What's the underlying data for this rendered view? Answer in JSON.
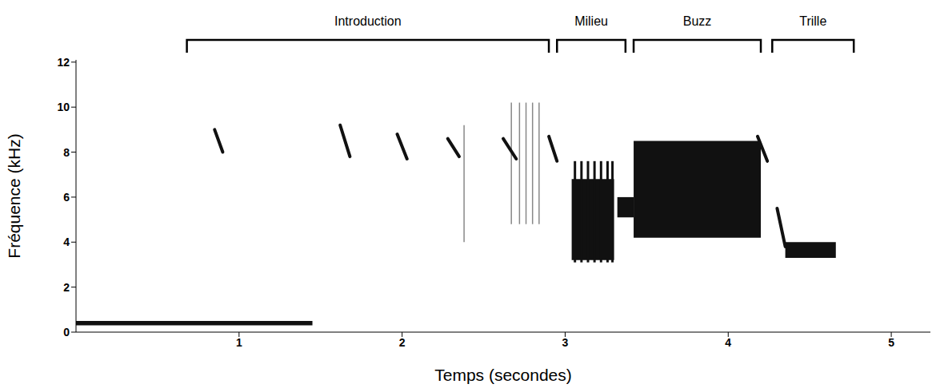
{
  "chart_data": {
    "type": "spectrogram",
    "x_label": "Temps (secondes)",
    "y_label": "Fréquence (kHz)",
    "xlim": [
      0,
      5.24
    ],
    "ylim": [
      0,
      12.1
    ],
    "xticks": [
      1,
      2,
      3,
      4,
      5
    ],
    "yticks": [
      0,
      2,
      4,
      6,
      8,
      10,
      12
    ],
    "sections": [
      {
        "name": "Introduction",
        "start": 0.68,
        "end": 2.9
      },
      {
        "name": "Milieu",
        "start": 2.95,
        "end": 3.37
      },
      {
        "name": "Buzz",
        "start": 3.42,
        "end": 4.2
      },
      {
        "name": "Trille",
        "start": 4.27,
        "end": 4.77
      }
    ],
    "sweeps": [
      {
        "t0": 0.85,
        "f0": 9.0,
        "t1": 0.9,
        "f1": 8.0
      },
      {
        "t0": 1.62,
        "f0": 9.2,
        "t1": 1.68,
        "f1": 7.8
      },
      {
        "t0": 1.97,
        "f0": 8.8,
        "t1": 2.03,
        "f1": 7.7
      },
      {
        "t0": 2.28,
        "f0": 8.6,
        "t1": 2.35,
        "f1": 7.8
      },
      {
        "t0": 2.62,
        "f0": 8.6,
        "t1": 2.7,
        "f1": 7.7
      },
      {
        "t0": 2.9,
        "f0": 8.7,
        "t1": 2.95,
        "f1": 7.6
      },
      {
        "t0": 4.18,
        "f0": 8.7,
        "t1": 4.24,
        "f1": 7.6
      },
      {
        "t0": 4.3,
        "f0": 5.5,
        "t1": 4.35,
        "f1": 3.8
      }
    ],
    "clicks": [
      {
        "t": 2.38,
        "f0": 4.0,
        "f1": 9.2
      },
      {
        "t": 2.67,
        "f0": 4.8,
        "f1": 10.2
      },
      {
        "t": 2.72,
        "f0": 4.8,
        "f1": 10.2
      },
      {
        "t": 2.76,
        "f0": 4.8,
        "f1": 10.2
      },
      {
        "t": 2.8,
        "f0": 4.8,
        "f1": 10.2
      },
      {
        "t": 2.84,
        "f0": 4.8,
        "f1": 10.2
      },
      {
        "t": 3.06,
        "f0": 3.1,
        "f1": 7.6
      },
      {
        "t": 3.1,
        "f0": 3.1,
        "f1": 7.6
      },
      {
        "t": 3.14,
        "f0": 3.1,
        "f1": 7.6
      },
      {
        "t": 3.18,
        "f0": 3.1,
        "f1": 7.6
      },
      {
        "t": 3.22,
        "f0": 3.1,
        "f1": 7.6
      },
      {
        "t": 3.26,
        "f0": 3.1,
        "f1": 7.6
      },
      {
        "t": 3.29,
        "f0": 3.1,
        "f1": 7.6
      }
    ],
    "blocks": [
      {
        "t0": 3.04,
        "t1": 3.3,
        "f0": 3.2,
        "f1": 6.8
      },
      {
        "t0": 3.32,
        "t1": 3.42,
        "f0": 5.1,
        "f1": 6.0
      },
      {
        "t0": 3.42,
        "t1": 4.2,
        "f0": 4.2,
        "f1": 8.5
      },
      {
        "t0": 4.35,
        "t1": 4.66,
        "f0": 3.3,
        "f1": 4.0
      },
      {
        "t0": 0.0,
        "t1": 1.45,
        "f0": 0.3,
        "f1": 0.5
      }
    ]
  }
}
